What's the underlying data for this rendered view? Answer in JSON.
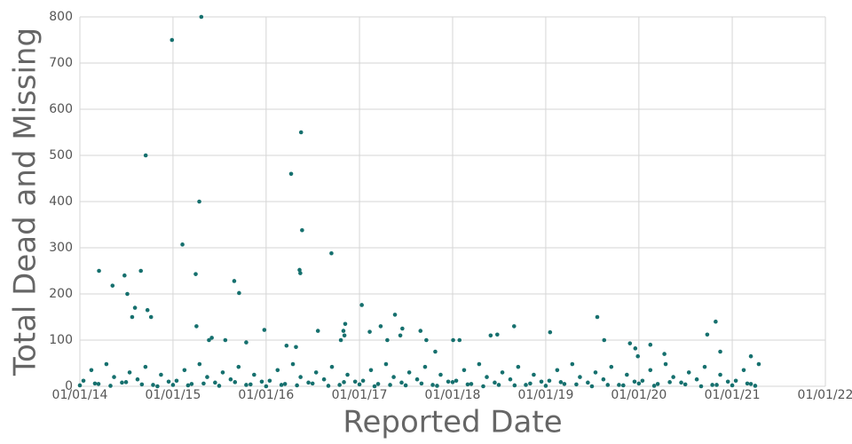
{
  "chart_data": {
    "type": "scatter",
    "x_label": "Reported Date",
    "y_label": "Total Dead and Missing",
    "xlim": [
      "2014-01-01",
      "2022-01-01"
    ],
    "xticks": [
      {
        "value": "2014-01-01",
        "label": "01/01/14"
      },
      {
        "value": "2015-01-01",
        "label": "01/01/15"
      },
      {
        "value": "2016-01-01",
        "label": "01/01/16"
      },
      {
        "value": "2017-01-01",
        "label": "01/01/17"
      },
      {
        "value": "2018-01-01",
        "label": "01/01/18"
      },
      {
        "value": "2019-01-01",
        "label": "01/01/19"
      },
      {
        "value": "2020-01-01",
        "label": "01/01/20"
      },
      {
        "value": "2021-01-01",
        "label": "01/01/21"
      },
      {
        "value": "2022-01-01",
        "label": "01/01/22"
      }
    ],
    "ylim": [
      0,
      800
    ],
    "yticks": [
      0,
      100,
      200,
      300,
      400,
      500,
      600,
      700,
      800
    ],
    "grid": true,
    "color": "#16706e",
    "x": [
      "2014-03-17",
      "2014-05-09",
      "2014-06-25",
      "2014-07-06",
      "2014-07-25",
      "2014-08-05",
      "2014-08-28",
      "2014-09-16",
      "2014-09-23",
      "2014-10-07",
      "2014-12-28",
      "2015-02-07",
      "2015-03-31",
      "2015-04-03",
      "2015-04-14",
      "2015-04-22",
      "2015-05-22",
      "2015-06-02",
      "2015-07-25",
      "2015-08-29",
      "2015-09-17",
      "2015-10-15",
      "2015-12-25",
      "2016-03-21",
      "2016-04-08",
      "2016-04-27",
      "2016-05-11",
      "2016-05-14",
      "2016-05-17",
      "2016-05-21",
      "2016-07-22",
      "2016-09-13",
      "2016-10-20",
      "2016-10-30",
      "2016-11-06",
      "2016-11-03",
      "2017-01-10",
      "2017-02-10",
      "2017-03-25",
      "2017-04-20",
      "2017-05-20",
      "2017-06-10",
      "2017-06-18",
      "2017-08-28",
      "2017-09-20",
      "2017-10-25",
      "2018-01-03",
      "2018-01-28",
      "2018-05-30",
      "2018-06-25",
      "2018-08-30",
      "2019-01-18",
      "2019-07-22",
      "2019-08-18",
      "2019-11-27",
      "2019-12-18",
      "2019-12-28",
      "2020-02-15",
      "2020-04-10",
      "2020-09-25",
      "2020-10-28",
      "2020-11-15",
      "2021-03-15",
      "2014-01-15",
      "2014-02-15",
      "2014-03-15",
      "2014-04-15",
      "2014-05-15",
      "2014-06-15",
      "2014-07-15",
      "2014-08-15",
      "2014-09-15",
      "2014-10-15",
      "2014-11-15",
      "2014-12-15",
      "2015-01-15",
      "2015-02-15",
      "2015-03-15",
      "2015-04-15",
      "2015-05-15",
      "2015-06-15",
      "2015-07-15",
      "2015-08-15",
      "2015-09-15",
      "2015-10-15",
      "2015-11-15",
      "2015-12-15",
      "2016-01-15",
      "2016-02-15",
      "2016-03-15",
      "2016-04-15",
      "2016-05-15",
      "2016-06-15",
      "2016-07-15",
      "2016-08-15",
      "2016-09-15",
      "2016-10-15",
      "2016-11-15",
      "2016-12-15",
      "2017-01-15",
      "2017-02-15",
      "2017-03-15",
      "2017-04-15",
      "2017-05-15",
      "2017-06-15",
      "2017-07-15",
      "2017-08-15",
      "2017-09-15",
      "2017-10-15",
      "2017-11-15",
      "2017-12-15",
      "2018-01-15",
      "2018-02-15",
      "2018-03-15",
      "2018-04-15",
      "2018-05-15",
      "2018-06-15",
      "2018-07-15",
      "2018-08-15",
      "2018-09-15",
      "2018-10-15",
      "2018-11-15",
      "2018-12-15",
      "2019-01-15",
      "2019-02-15",
      "2019-03-15",
      "2019-04-15",
      "2019-05-15",
      "2019-06-15",
      "2019-07-15",
      "2019-08-15",
      "2019-09-15",
      "2019-10-15",
      "2019-11-15",
      "2019-12-15",
      "2020-01-15",
      "2020-02-15",
      "2020-03-15",
      "2020-04-15",
      "2020-05-15",
      "2020-06-15",
      "2020-07-15",
      "2020-08-15",
      "2020-09-15",
      "2020-10-15",
      "2020-11-15",
      "2020-12-15",
      "2021-01-15",
      "2021-02-15",
      "2021-03-15",
      "2021-04-15",
      "2014-01-01",
      "2014-03-01",
      "2014-05-01",
      "2014-07-01",
      "2014-09-01",
      "2014-11-01",
      "2015-01-01",
      "2015-03-01",
      "2015-05-01",
      "2015-07-01",
      "2015-09-01",
      "2015-11-01",
      "2016-01-01",
      "2016-03-01",
      "2016-05-01",
      "2016-07-01",
      "2016-09-01",
      "2016-11-01",
      "2017-01-01",
      "2017-03-01",
      "2017-05-01",
      "2017-07-01",
      "2017-09-01",
      "2017-11-01",
      "2018-01-01",
      "2018-03-01",
      "2018-05-01",
      "2018-07-01",
      "2018-09-01",
      "2018-11-01",
      "2019-01-01",
      "2019-03-01",
      "2019-05-01",
      "2019-07-01",
      "2019-09-01",
      "2019-11-01",
      "2020-01-01",
      "2020-03-01",
      "2020-05-01",
      "2020-07-01",
      "2020-09-01",
      "2020-11-01",
      "2021-01-01",
      "2021-03-01",
      "2021-04-01"
    ],
    "values": [
      250,
      218,
      240,
      200,
      150,
      170,
      250,
      500,
      165,
      150,
      750,
      307,
      243,
      130,
      400,
      800,
      100,
      105,
      100,
      228,
      202,
      95,
      122,
      88,
      460,
      85,
      252,
      245,
      550,
      338,
      120,
      288,
      100,
      120,
      135,
      110,
      176,
      118,
      130,
      100,
      155,
      110,
      125,
      120,
      100,
      75,
      100,
      100,
      110,
      112,
      130,
      117,
      150,
      100,
      93,
      82,
      65,
      90,
      70,
      112,
      140,
      75,
      65,
      12,
      35,
      5,
      48,
      20,
      8,
      30,
      15,
      42,
      3,
      25,
      10,
      12,
      35,
      5,
      48,
      20,
      8,
      30,
      15,
      42,
      3,
      25,
      10,
      12,
      35,
      5,
      48,
      20,
      8,
      30,
      15,
      42,
      3,
      25,
      10,
      12,
      35,
      5,
      48,
      20,
      8,
      30,
      15,
      42,
      3,
      25,
      10,
      12,
      35,
      5,
      48,
      20,
      8,
      30,
      15,
      42,
      3,
      25,
      10,
      12,
      35,
      5,
      48,
      20,
      8,
      30,
      15,
      42,
      3,
      25,
      10,
      12,
      35,
      5,
      48,
      20,
      8,
      30,
      15,
      42,
      3,
      25,
      10,
      12,
      35,
      5,
      48,
      2,
      6,
      1,
      9,
      4,
      0,
      3,
      2,
      6,
      1,
      9,
      4,
      0,
      3,
      2,
      6,
      1,
      9,
      4,
      0,
      3,
      2,
      6,
      1,
      9,
      4,
      0,
      3,
      2,
      6,
      1,
      9,
      4,
      0,
      3,
      2,
      6,
      1,
      9,
      4,
      0,
      3,
      2,
      6,
      1
    ]
  }
}
